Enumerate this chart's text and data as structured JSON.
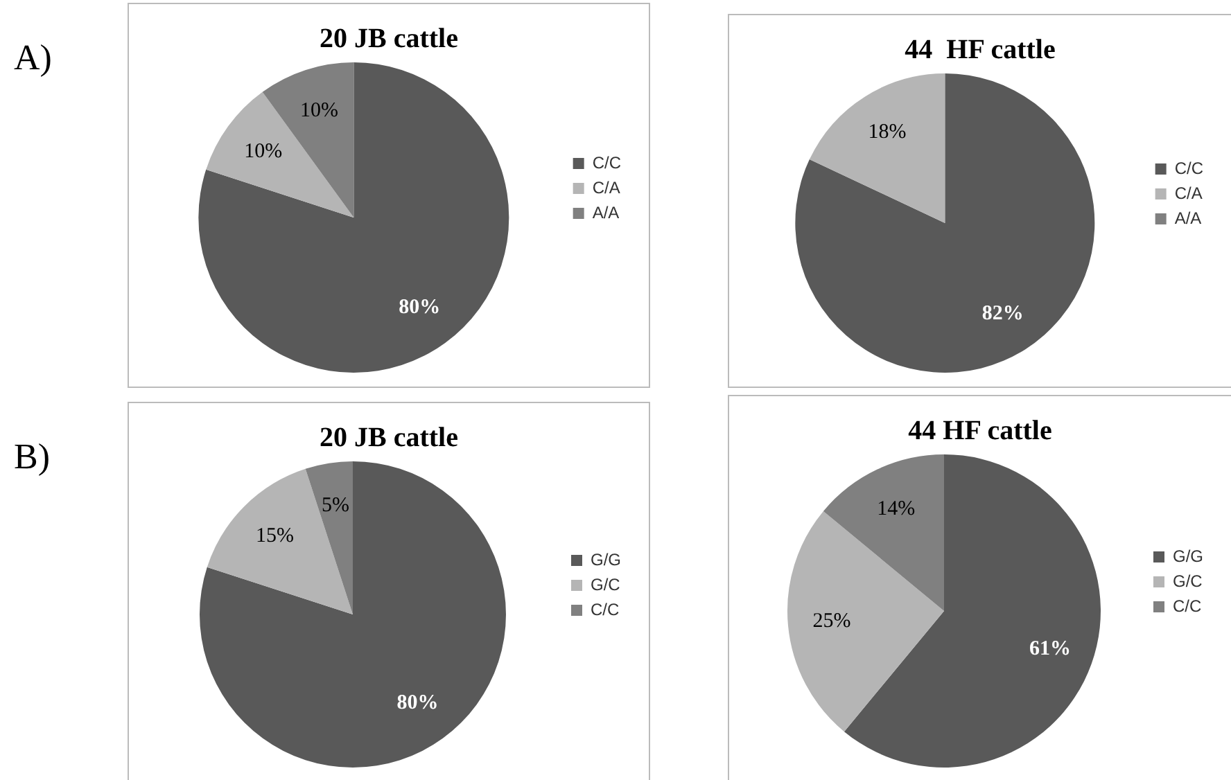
{
  "chart_data": [
    {
      "type": "pie",
      "title": "20 JB cattle",
      "annotations": [
        "A)"
      ],
      "categories": [
        "C/C",
        "C/A",
        "A/A"
      ],
      "values": [
        80,
        10,
        10
      ],
      "colors": [
        "#595959",
        "#b5b5b5",
        "#808080"
      ],
      "value_labels": [
        "80%",
        "10%",
        "10%"
      ],
      "legend": "right"
    },
    {
      "type": "pie",
      "title": "44  HF cattle",
      "categories": [
        "C/C",
        "C/A",
        "A/A"
      ],
      "values": [
        82,
        18,
        0
      ],
      "colors": [
        "#595959",
        "#b5b5b5",
        "#808080"
      ],
      "value_labels": [
        "82%",
        "18%",
        null
      ],
      "legend": "right"
    },
    {
      "type": "pie",
      "title": "20 JB cattle",
      "annotations": [
        "B)"
      ],
      "categories": [
        "G/G",
        "G/C",
        "C/C"
      ],
      "values": [
        80,
        15,
        5
      ],
      "colors": [
        "#595959",
        "#b5b5b5",
        "#808080"
      ],
      "value_labels": [
        "80%",
        "15%",
        "5%"
      ],
      "legend": "right"
    },
    {
      "type": "pie",
      "title": "44 HF cattle",
      "categories": [
        "G/G",
        "G/C",
        "C/C"
      ],
      "values": [
        61,
        25,
        14
      ],
      "colors": [
        "#595959",
        "#b5b5b5",
        "#808080"
      ],
      "value_labels": [
        "61%",
        "25%",
        "14%"
      ],
      "legend": "right"
    }
  ]
}
